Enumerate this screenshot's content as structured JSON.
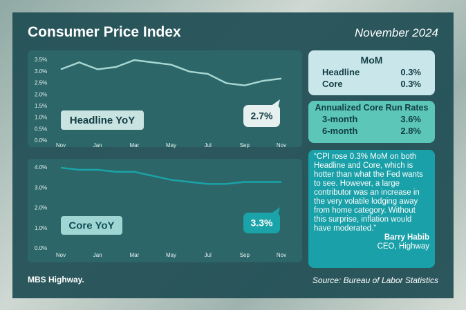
{
  "title": "Consumer Price Index",
  "date": "November 2024",
  "chart_data": [
    {
      "type": "line",
      "title": "Headline YoY",
      "color": "#a8d6d1",
      "categories": [
        "Nov",
        null,
        "Jan",
        null,
        "Mar",
        null,
        "May",
        null,
        "Jul",
        null,
        "Sep",
        null,
        "Nov"
      ],
      "values": [
        3.1,
        3.4,
        3.1,
        3.2,
        3.5,
        3.4,
        3.3,
        3.0,
        2.9,
        2.5,
        2.4,
        2.6,
        2.7
      ],
      "value_labels": [
        null,
        null,
        null,
        null,
        null,
        null,
        null,
        null,
        null,
        null,
        null,
        null,
        "2.7%"
      ],
      "ylim": [
        0,
        3.5
      ],
      "yticks": [
        {
          "value": 0,
          "label": "0.0%"
        },
        {
          "value": 0.5,
          "label": "0.5%"
        },
        {
          "value": 1,
          "label": "1.0%"
        },
        {
          "value": 1.5,
          "label": "1.5%"
        },
        {
          "value": 2,
          "label": "2.0%"
        },
        {
          "value": 2.5,
          "label": "2.5%"
        },
        {
          "value": 3,
          "label": "3.0%"
        },
        {
          "value": 3.5,
          "label": "3.5%"
        }
      ],
      "grid": false
    },
    {
      "type": "line",
      "title": "Core YoY",
      "color": "#1aa3a8",
      "categories": [
        "Nov",
        null,
        "Jan",
        null,
        "Mar",
        null,
        "May",
        null,
        "Jul",
        null,
        "Sep",
        null,
        "Nov"
      ],
      "values": [
        4.0,
        3.9,
        3.9,
        3.8,
        3.8,
        3.6,
        3.4,
        3.3,
        3.2,
        3.2,
        3.3,
        3.3,
        3.3
      ],
      "value_labels": [
        null,
        null,
        null,
        null,
        null,
        null,
        null,
        null,
        null,
        null,
        null,
        null,
        "3.3%"
      ],
      "ylim": [
        0,
        4
      ],
      "yticks": [
        {
          "value": 0,
          "label": "0.0%"
        },
        {
          "value": 1,
          "label": "1.0%"
        },
        {
          "value": 2,
          "label": "2.0%"
        },
        {
          "value": 3,
          "label": "3.0%"
        },
        {
          "value": 4,
          "label": "4.0%"
        }
      ],
      "grid": false
    }
  ],
  "mom": {
    "title": "MoM",
    "rows": [
      [
        "Headline",
        "0.3%"
      ],
      [
        "Core",
        "0.3%"
      ]
    ]
  },
  "run_rates": {
    "title": "Annualized Core Run Rates",
    "rows": [
      [
        "3-month",
        "3.6%"
      ],
      [
        "6-month",
        "2.8%"
      ]
    ]
  },
  "quote": {
    "text": "“CPI rose 0.3% MoM on both Headline and Core, which is hotter than what the Fed wants to see. However, a large contributor was an increase in the very volatile lodging away from home category. Without this surprise, inflation would have moderated.”",
    "author": "Barry Habib",
    "role": "CEO, Highway"
  },
  "logo": "MBS Highway.",
  "source": "Source: Bureau of Labor Statistics"
}
